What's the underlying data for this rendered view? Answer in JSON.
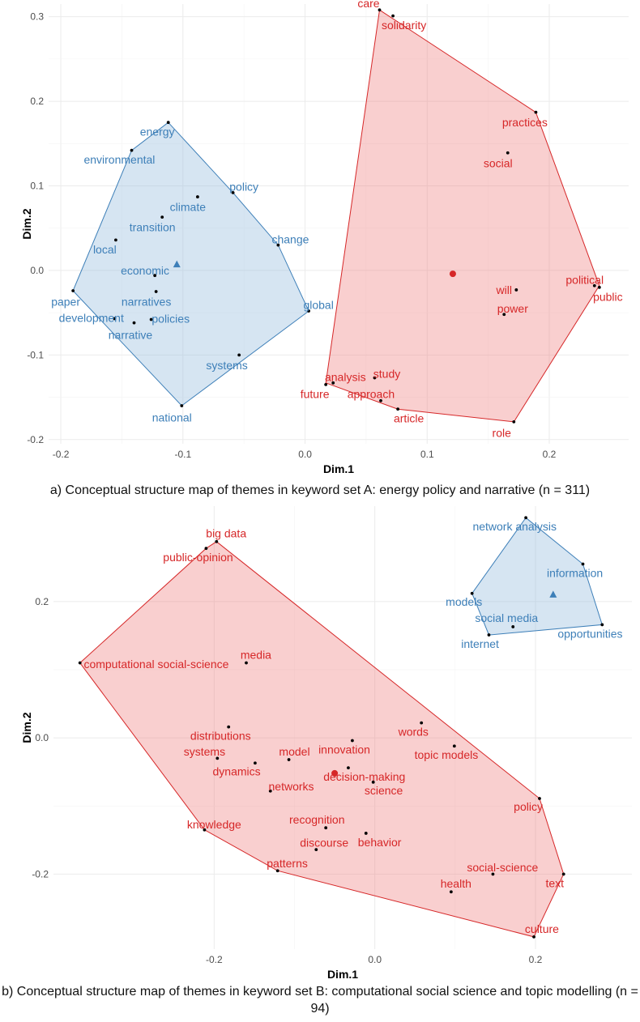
{
  "colors": {
    "red": "#d62728",
    "blue": "#3d7fb8",
    "red_fill": "#f08080",
    "blue_fill": "#9ec0df",
    "point": "#000000",
    "grid": "#ebebeb"
  },
  "captions": {
    "a": "a) Conceptual structure map of themes in keyword set A: energy policy and narrative (n = 311)",
    "b": "b) Conceptual structure map of themes in keyword set B: computational social science and topic modelling (n = 94)"
  },
  "chart_data": [
    {
      "type": "scatter",
      "title": "",
      "xlabel": "Dim.1",
      "ylabel": "Dim.2",
      "xlim": [
        -0.21,
        0.265
      ],
      "ylim": [
        -0.205,
        0.315
      ],
      "x_ticks": [
        -0.2,
        -0.1,
        0.0,
        0.1,
        0.2
      ],
      "x_tick_labels": [
        "-0.2",
        "-0.1",
        "0.0",
        "0.1",
        "0.2"
      ],
      "y_ticks": [
        -0.2,
        -0.1,
        0.0,
        0.1,
        0.2,
        0.3
      ],
      "y_tick_labels": [
        "-0.2",
        "-0.1",
        "0.0",
        "0.1",
        "0.2",
        "0.3"
      ],
      "grid": true,
      "clusters": [
        {
          "color": "blue",
          "centroid": {
            "x": -0.105,
            "y": 0.007,
            "shape": "triangle"
          },
          "hull": [
            [
              -0.112,
              0.175
            ],
            [
              -0.059,
              0.092
            ],
            [
              -0.022,
              0.03
            ],
            [
              0.003,
              -0.048
            ],
            [
              -0.101,
              -0.16
            ],
            [
              -0.19,
              -0.024
            ],
            [
              -0.142,
              0.142
            ]
          ],
          "points": [
            {
              "label": "energy",
              "x": -0.112,
              "y": 0.175,
              "lx": -0.121,
              "ly": 0.164
            },
            {
              "label": "environmental",
              "x": -0.142,
              "y": 0.142,
              "lx": -0.152,
              "ly": 0.131
            },
            {
              "label": "policy",
              "x": -0.059,
              "y": 0.092,
              "lx": -0.05,
              "ly": 0.099
            },
            {
              "label": "climate",
              "x": -0.088,
              "y": 0.087,
              "lx": -0.096,
              "ly": 0.075
            },
            {
              "label": "transition",
              "x": -0.117,
              "y": 0.063,
              "lx": -0.125,
              "ly": 0.051
            },
            {
              "label": "change",
              "x": -0.022,
              "y": 0.03,
              "lx": -0.012,
              "ly": 0.037
            },
            {
              "label": "local",
              "x": -0.155,
              "y": 0.036,
              "lx": -0.164,
              "ly": 0.025
            },
            {
              "label": "economic",
              "x": -0.123,
              "y": -0.006,
              "lx": -0.131,
              "ly": 0.0
            },
            {
              "label": "narratives",
              "x": -0.122,
              "y": -0.025,
              "lx": -0.13,
              "ly": -0.037
            },
            {
              "label": "paper",
              "x": -0.19,
              "y": -0.024,
              "lx": -0.196,
              "ly": -0.037
            },
            {
              "label": "development",
              "x": -0.156,
              "y": -0.057,
              "lx": -0.175,
              "ly": -0.056
            },
            {
              "label": "policies",
              "x": -0.126,
              "y": -0.058,
              "lx": -0.11,
              "ly": -0.057
            },
            {
              "label": "narrative",
              "x": -0.14,
              "y": -0.062,
              "lx": -0.143,
              "ly": -0.076
            },
            {
              "label": "global",
              "x": 0.003,
              "y": -0.048,
              "lx": 0.011,
              "ly": -0.041
            },
            {
              "label": "systems",
              "x": -0.054,
              "y": -0.1,
              "lx": -0.064,
              "ly": -0.112
            },
            {
              "label": "national",
              "x": -0.101,
              "y": -0.16,
              "lx": -0.109,
              "ly": -0.174
            }
          ]
        },
        {
          "color": "red",
          "centroid": {
            "x": 0.121,
            "y": -0.004,
            "shape": "circle"
          },
          "hull": [
            [
              0.061,
              0.308
            ],
            [
              0.189,
              0.187
            ],
            [
              0.241,
              -0.018
            ],
            [
              0.171,
              -0.179
            ],
            [
              0.076,
              -0.164
            ],
            [
              0.017,
              -0.133
            ]
          ],
          "points": [
            {
              "label": "care",
              "x": 0.061,
              "y": 0.308,
              "lx": 0.052,
              "ly": 0.316
            },
            {
              "label": "solidarity",
              "x": 0.072,
              "y": 0.301,
              "lx": 0.081,
              "ly": 0.29
            },
            {
              "label": "practices",
              "x": 0.189,
              "y": 0.187,
              "lx": 0.18,
              "ly": 0.175
            },
            {
              "label": "social",
              "x": 0.166,
              "y": 0.139,
              "lx": 0.158,
              "ly": 0.127
            },
            {
              "label": "will",
              "x": 0.173,
              "y": -0.023,
              "lx": 0.163,
              "ly": -0.023
            },
            {
              "label": "power",
              "x": 0.163,
              "y": -0.052,
              "lx": 0.17,
              "ly": -0.045
            },
            {
              "label": "political",
              "x": 0.237,
              "y": -0.018,
              "lx": 0.229,
              "ly": -0.011
            },
            {
              "label": "public",
              "x": 0.241,
              "y": -0.02,
              "lx": 0.248,
              "ly": -0.031
            },
            {
              "label": "study",
              "x": 0.057,
              "y": -0.127,
              "lx": 0.067,
              "ly": -0.122
            },
            {
              "label": "analysis",
              "x": 0.023,
              "y": -0.133,
              "lx": 0.033,
              "ly": -0.126
            },
            {
              "label": "future",
              "x": 0.017,
              "y": -0.135,
              "lx": 0.008,
              "ly": -0.146
            },
            {
              "label": "approach",
              "x": 0.062,
              "y": -0.154,
              "lx": 0.054,
              "ly": -0.146
            },
            {
              "label": "article",
              "x": 0.076,
              "y": -0.164,
              "lx": 0.085,
              "ly": -0.175
            },
            {
              "label": "role",
              "x": 0.171,
              "y": -0.179,
              "lx": 0.161,
              "ly": -0.192
            }
          ]
        }
      ]
    },
    {
      "type": "scatter",
      "title": "",
      "xlabel": "Dim.1",
      "ylabel": "Dim.2",
      "xlim": [
        -0.4,
        0.32
      ],
      "ylim": [
        -0.31,
        0.34
      ],
      "x_ticks": [
        -0.2,
        0.0,
        0.2
      ],
      "x_tick_labels": [
        "-0.2",
        "0.0",
        "0.2"
      ],
      "y_ticks": [
        -0.2,
        0.0,
        0.2
      ],
      "y_tick_labels": [
        "-0.2",
        "0.0",
        "0.2"
      ],
      "grid": true,
      "clusters": [
        {
          "color": "red",
          "centroid": {
            "x": -0.05,
            "y": -0.052,
            "shape": "circle"
          },
          "hull": [
            [
              -0.197,
              0.288
            ],
            [
              0.205,
              -0.089
            ],
            [
              0.235,
              -0.2
            ],
            [
              0.198,
              -0.292
            ],
            [
              -0.121,
              -0.195
            ],
            [
              -0.212,
              -0.135
            ],
            [
              -0.367,
              0.11
            ],
            [
              -0.21,
              0.278
            ]
          ],
          "points": [
            {
              "label": "big data",
              "x": -0.197,
              "y": 0.288,
              "lx": -0.185,
              "ly": 0.3
            },
            {
              "label": "public-opinion",
              "x": -0.21,
              "y": 0.278,
              "lx": -0.22,
              "ly": 0.265
            },
            {
              "label": "computational social-science",
              "x": -0.367,
              "y": 0.11,
              "lx": -0.272,
              "ly": 0.108
            },
            {
              "label": "media",
              "x": -0.16,
              "y": 0.11,
              "lx": -0.148,
              "ly": 0.122
            },
            {
              "label": "distributions",
              "x": -0.182,
              "y": 0.016,
              "lx": -0.192,
              "ly": 0.003
            },
            {
              "label": "systems",
              "x": -0.196,
              "y": -0.03,
              "lx": -0.212,
              "ly": -0.02
            },
            {
              "label": "dynamics",
              "x": -0.149,
              "y": -0.037,
              "lx": -0.172,
              "ly": -0.049
            },
            {
              "label": "model",
              "x": -0.107,
              "y": -0.032,
              "lx": -0.1,
              "ly": -0.02
            },
            {
              "label": "innovation",
              "x": -0.028,
              "y": -0.004,
              "lx": -0.038,
              "ly": -0.017
            },
            {
              "label": "decision-making",
              "x": -0.033,
              "y": -0.044,
              "lx": -0.013,
              "ly": -0.057
            },
            {
              "label": "networks",
              "x": -0.13,
              "y": -0.078,
              "lx": -0.104,
              "ly": -0.071
            },
            {
              "label": "science",
              "x": -0.002,
              "y": -0.065,
              "lx": 0.011,
              "ly": -0.077
            },
            {
              "label": "words",
              "x": 0.058,
              "y": 0.022,
              "lx": 0.048,
              "ly": 0.009
            },
            {
              "label": "topic models",
              "x": 0.099,
              "y": -0.012,
              "lx": 0.089,
              "ly": -0.025
            },
            {
              "label": "policy",
              "x": 0.205,
              "y": -0.089,
              "lx": 0.191,
              "ly": -0.101
            },
            {
              "label": "knowledge",
              "x": -0.212,
              "y": -0.135,
              "lx": -0.2,
              "ly": -0.127
            },
            {
              "label": "recognition",
              "x": -0.061,
              "y": -0.132,
              "lx": -0.072,
              "ly": -0.12
            },
            {
              "label": "discourse",
              "x": -0.073,
              "y": -0.164,
              "lx": -0.063,
              "ly": -0.154
            },
            {
              "label": "behavior",
              "x": -0.011,
              "y": -0.14,
              "lx": 0.006,
              "ly": -0.153
            },
            {
              "label": "patterns",
              "x": -0.121,
              "y": -0.195,
              "lx": -0.109,
              "ly": -0.184
            },
            {
              "label": "social-science",
              "x": 0.147,
              "y": -0.2,
              "lx": 0.159,
              "ly": -0.19
            },
            {
              "label": "health",
              "x": 0.095,
              "y": -0.226,
              "lx": 0.101,
              "ly": -0.214
            },
            {
              "label": "text",
              "x": 0.235,
              "y": -0.2,
              "lx": 0.224,
              "ly": -0.213
            },
            {
              "label": "culture",
              "x": 0.198,
              "y": -0.292,
              "lx": 0.208,
              "ly": -0.28
            }
          ]
        },
        {
          "color": "blue",
          "centroid": {
            "x": 0.222,
            "y": 0.21,
            "shape": "triangle"
          },
          "hull": [
            [
              0.188,
              0.323
            ],
            [
              0.259,
              0.255
            ],
            [
              0.283,
              0.166
            ],
            [
              0.142,
              0.151
            ],
            [
              0.121,
              0.212
            ]
          ],
          "points": [
            {
              "label": "network analysis",
              "x": 0.188,
              "y": 0.323,
              "lx": 0.174,
              "ly": 0.31
            },
            {
              "label": "information",
              "x": 0.259,
              "y": 0.255,
              "lx": 0.249,
              "ly": 0.242
            },
            {
              "label": "models",
              "x": 0.121,
              "y": 0.212,
              "lx": 0.111,
              "ly": 0.2
            },
            {
              "label": "social media",
              "x": 0.172,
              "y": 0.163,
              "lx": 0.164,
              "ly": 0.176
            },
            {
              "label": "internet",
              "x": 0.142,
              "y": 0.151,
              "lx": 0.131,
              "ly": 0.138
            },
            {
              "label": "opportunities",
              "x": 0.283,
              "y": 0.166,
              "lx": 0.268,
              "ly": 0.153
            }
          ]
        }
      ]
    }
  ]
}
